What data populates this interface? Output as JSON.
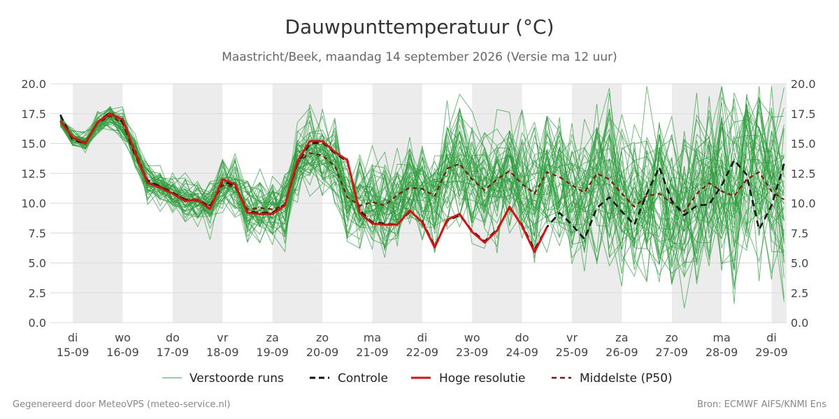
{
  "header": {
    "title": "Dauwpunttemperatuur (°C)",
    "subtitle": "Maastricht/Beek, maandag 14 september 2026 (Versie ma 12 uur)"
  },
  "footer": {
    "left": "Gegenereerd door MeteoVPS (meteo-service.nl)",
    "right": "Bron: ECMWF AIFS/KNMI Ens"
  },
  "colors": {
    "ensemble": "#2e9e3e",
    "control": "#111111",
    "hires": "#dd0f0f",
    "median": "#8b1010",
    "weekend_band": "#ececec",
    "grid": "#d9d9d9"
  },
  "chart_data": {
    "type": "line",
    "title": "Dauwpunttemperatuur (°C)",
    "ylim": [
      0,
      20
    ],
    "xlim": [
      -0.45,
      14.3
    ],
    "yticks": [
      "0.0",
      "2.5",
      "5.0",
      "7.5",
      "10.0",
      "12.5",
      "15.0",
      "17.5",
      "20.0"
    ],
    "ytick_values": [
      0,
      2.5,
      5,
      7.5,
      10,
      12.5,
      15,
      17.5,
      20
    ],
    "x_ticks": [
      {
        "day": "di",
        "date": "15-09"
      },
      {
        "day": "wo",
        "date": "16-09"
      },
      {
        "day": "do",
        "date": "17-09"
      },
      {
        "day": "vr",
        "date": "18-09"
      },
      {
        "day": "za",
        "date": "19-09"
      },
      {
        "day": "zo",
        "date": "20-09"
      },
      {
        "day": "ma",
        "date": "21-09"
      },
      {
        "day": "di",
        "date": "22-09"
      },
      {
        "day": "wo",
        "date": "23-09"
      },
      {
        "day": "do",
        "date": "24-09"
      },
      {
        "day": "vr",
        "date": "25-09"
      },
      {
        "day": "za",
        "date": "26-09"
      },
      {
        "day": "zo",
        "date": "27-09"
      },
      {
        "day": "ma",
        "date": "28-09"
      },
      {
        "day": "di",
        "date": "29-09"
      }
    ],
    "shaded_bands": [
      [
        0,
        1
      ],
      [
        2,
        3
      ],
      [
        4,
        5
      ],
      [
        6,
        7
      ],
      [
        8,
        9
      ],
      [
        10,
        11
      ],
      [
        12,
        13
      ],
      [
        14,
        14.3
      ]
    ],
    "grid": true,
    "legend_position": "bottom",
    "legend": [
      {
        "label": "Verstoorde runs"
      },
      {
        "label": "Controle"
      },
      {
        "label": "Hoge resolutie"
      },
      {
        "label": "Middelste (P50)"
      }
    ],
    "series": [
      {
        "name": "Hoge resolutie",
        "x": [
          -0.25,
          0,
          0.25,
          0.5,
          0.75,
          1,
          1.25,
          1.5,
          1.75,
          2,
          2.25,
          2.5,
          2.75,
          3,
          3.25,
          3.5,
          3.75,
          4,
          4.25,
          4.5,
          4.75,
          5,
          5.25,
          5.5,
          5.75,
          6,
          6.25,
          6.5,
          6.75,
          7,
          7.25,
          7.5,
          7.75,
          8,
          8.25,
          8.5,
          8.75,
          9,
          9.25,
          9.5
        ],
        "values": [
          16.9,
          15.5,
          15.0,
          16.8,
          17.5,
          17.0,
          14.2,
          11.7,
          11.3,
          10.8,
          10.2,
          10.3,
          9.5,
          12.0,
          11.6,
          9.2,
          9.1,
          9.1,
          9.8,
          13.5,
          15.2,
          15.2,
          14.3,
          13.6,
          9.2,
          8.3,
          8.2,
          8.2,
          9.4,
          8.4,
          6.3,
          8.6,
          9.1,
          7.6,
          6.7,
          7.7,
          9.7,
          8.1,
          5.9,
          8.0
        ]
      },
      {
        "name": "Controle",
        "x": [
          -0.25,
          0,
          0.25,
          0.5,
          0.75,
          1,
          1.25,
          1.5,
          1.75,
          2,
          2.25,
          2.5,
          2.75,
          3,
          3.25,
          3.5,
          3.75,
          4,
          4.25,
          4.5,
          4.75,
          5,
          5.25,
          5.5,
          5.75,
          6,
          6.25,
          6.5,
          6.75,
          7,
          7.25,
          7.5,
          7.75,
          8,
          8.25,
          8.5,
          8.75,
          9,
          9.25,
          9.5,
          9.75,
          10,
          10.25,
          10.5,
          10.75,
          11,
          11.25,
          11.5,
          11.75,
          12,
          12.25,
          12.5,
          12.75,
          13,
          13.25,
          13.5,
          13.75,
          14,
          14.25
        ],
        "values": [
          17.4,
          15.3,
          15.0,
          16.8,
          17.6,
          16.8,
          14.0,
          11.9,
          11.4,
          10.9,
          10.3,
          10.3,
          9.7,
          11.8,
          11.5,
          9.3,
          9.2,
          9.2,
          9.9,
          13.3,
          15.0,
          15.1,
          14.2,
          13.5,
          9.4,
          8.4,
          8.3,
          8.2,
          9.3,
          8.5,
          6.4,
          8.5,
          9.0,
          7.7,
          6.8,
          7.8,
          9.6,
          8.2,
          6.1,
          8.0,
          9.2,
          8.2,
          7.0,
          9.6,
          10.5,
          9.3,
          8.2,
          10.8,
          13.0,
          10.2,
          9.0,
          9.8,
          9.9,
          11.5,
          13.6,
          12.4,
          7.8,
          9.8,
          13.3
        ]
      },
      {
        "name": "Middelste (P50)",
        "x": [
          -0.25,
          0,
          0.25,
          0.5,
          0.75,
          1,
          1.25,
          1.5,
          1.75,
          2,
          2.25,
          2.5,
          2.75,
          3,
          3.25,
          3.5,
          3.75,
          4,
          4.25,
          4.5,
          4.75,
          5,
          5.25,
          5.5,
          5.75,
          6,
          6.25,
          6.5,
          6.75,
          7,
          7.25,
          7.5,
          7.75,
          8,
          8.25,
          8.5,
          8.75,
          9,
          9.25,
          9.5,
          9.75,
          10,
          10.25,
          10.5,
          10.75,
          11,
          11.25,
          11.5,
          11.75,
          12,
          12.25,
          12.5,
          12.75,
          13,
          13.25,
          13.5,
          13.75,
          14,
          14.25
        ],
        "values": [
          16.9,
          15.5,
          15.1,
          16.7,
          17.3,
          16.7,
          14.4,
          11.8,
          11.4,
          10.9,
          10.3,
          10.2,
          9.8,
          11.5,
          11.4,
          9.5,
          9.6,
          9.5,
          9.8,
          13.4,
          14.2,
          14.0,
          13.1,
          10.5,
          9.8,
          10.1,
          9.8,
          10.7,
          11.3,
          11.2,
          10.6,
          12.9,
          13.3,
          12.0,
          11.1,
          12.0,
          12.7,
          11.6,
          10.8,
          12.6,
          12.2,
          11.5,
          10.9,
          12.5,
          12.0,
          10.8,
          9.7,
          10.6,
          10.8,
          10.0,
          9.3,
          10.8,
          11.7,
          11.0,
          10.6,
          12.0,
          12.6,
          11.0,
          10.3
        ]
      }
    ]
  }
}
